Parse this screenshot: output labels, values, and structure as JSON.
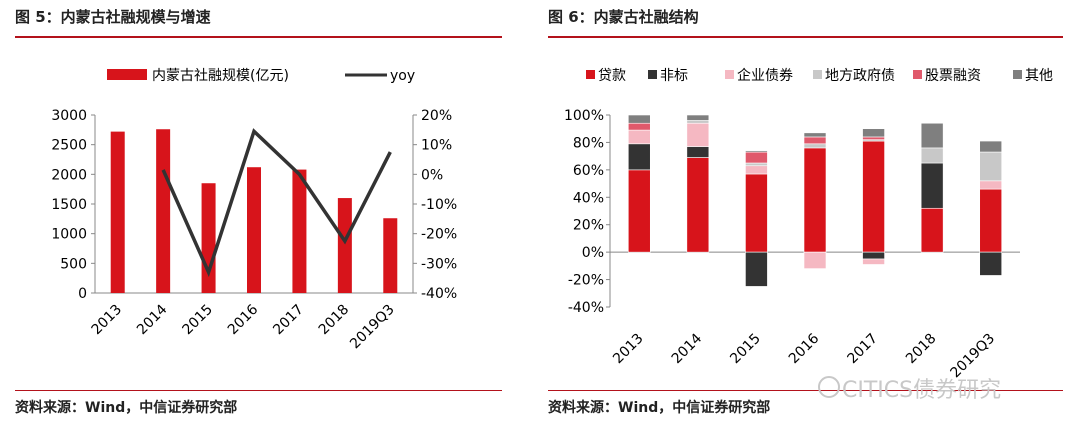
{
  "charts": {
    "left": {
      "figure_title": "图 5：内蒙古社融规模与增速",
      "source": "资料来源：Wind，中信证券研究部"
    },
    "right": {
      "figure_title": "图 6：内蒙古社融结构",
      "source": "资料来源：Wind，中信证券研究部"
    }
  },
  "watermark": "CITICS债券研究",
  "colors": {
    "accent": "#b3121b",
    "bar_red": "#d7141b",
    "line_dark": "#333333",
    "black": "#333333",
    "pink": "#f5b8c2",
    "grey": "#c8c8c8",
    "mid_red": "#e0596b",
    "dark_grey": "#7f7f7f"
  },
  "chart_data": [
    {
      "type": "bar",
      "categories": [
        "2013",
        "2014",
        "2015",
        "2016",
        "2017",
        "2018",
        "2019Q3"
      ],
      "series": [
        {
          "name": "内蒙古社融规模(亿元)",
          "type": "bar",
          "axis": "left",
          "values": [
            2720,
            2760,
            1850,
            2120,
            2080,
            1600,
            1260
          ]
        },
        {
          "name": "yoy",
          "type": "line",
          "axis": "right",
          "values": [
            null,
            1.5,
            -33,
            14.5,
            0,
            -22.5,
            7.5
          ]
        }
      ],
      "y_left": {
        "min": 0,
        "max": 3000,
        "ticks": [
          "0",
          "500",
          "1000",
          "1500",
          "2000",
          "2500",
          "3000"
        ]
      },
      "y_right": {
        "min": -40,
        "max": 20,
        "ticks": [
          "-40%",
          "-30%",
          "-20%",
          "-10%",
          "0%",
          "10%",
          "20%"
        ]
      },
      "legend": "top"
    },
    {
      "type": "bar",
      "stacked": true,
      "categories": [
        "2013",
        "2014",
        "2015",
        "2016",
        "2017",
        "2018",
        "2019Q3"
      ],
      "series": [
        {
          "name": "贷款",
          "color": "#d7141b",
          "values": [
            60,
            69,
            57,
            76,
            81,
            32,
            46
          ]
        },
        {
          "name": "非标",
          "color": "#333333",
          "values": [
            19,
            8,
            -25,
            0,
            -5,
            33,
            -17
          ]
        },
        {
          "name": "企业债券",
          "color": "#f5b8c2",
          "values": [
            10,
            17,
            6,
            -12,
            -4,
            0,
            6
          ]
        },
        {
          "name": "地方政府债",
          "color": "#c8c8c8",
          "values": [
            0,
            2,
            2,
            3,
            1,
            11,
            21
          ]
        },
        {
          "name": "股票融资",
          "color": "#e0596b",
          "values": [
            5,
            0,
            8,
            5,
            2,
            0,
            0
          ]
        },
        {
          "name": "其他",
          "color": "#7f7f7f",
          "values": [
            6,
            4,
            1,
            3,
            6,
            18,
            8
          ]
        }
      ],
      "y": {
        "min": -40,
        "max": 100,
        "ticks": [
          "-40%",
          "-20%",
          "0%",
          "20%",
          "40%",
          "60%",
          "80%",
          "100%"
        ]
      },
      "legend": "top"
    }
  ]
}
